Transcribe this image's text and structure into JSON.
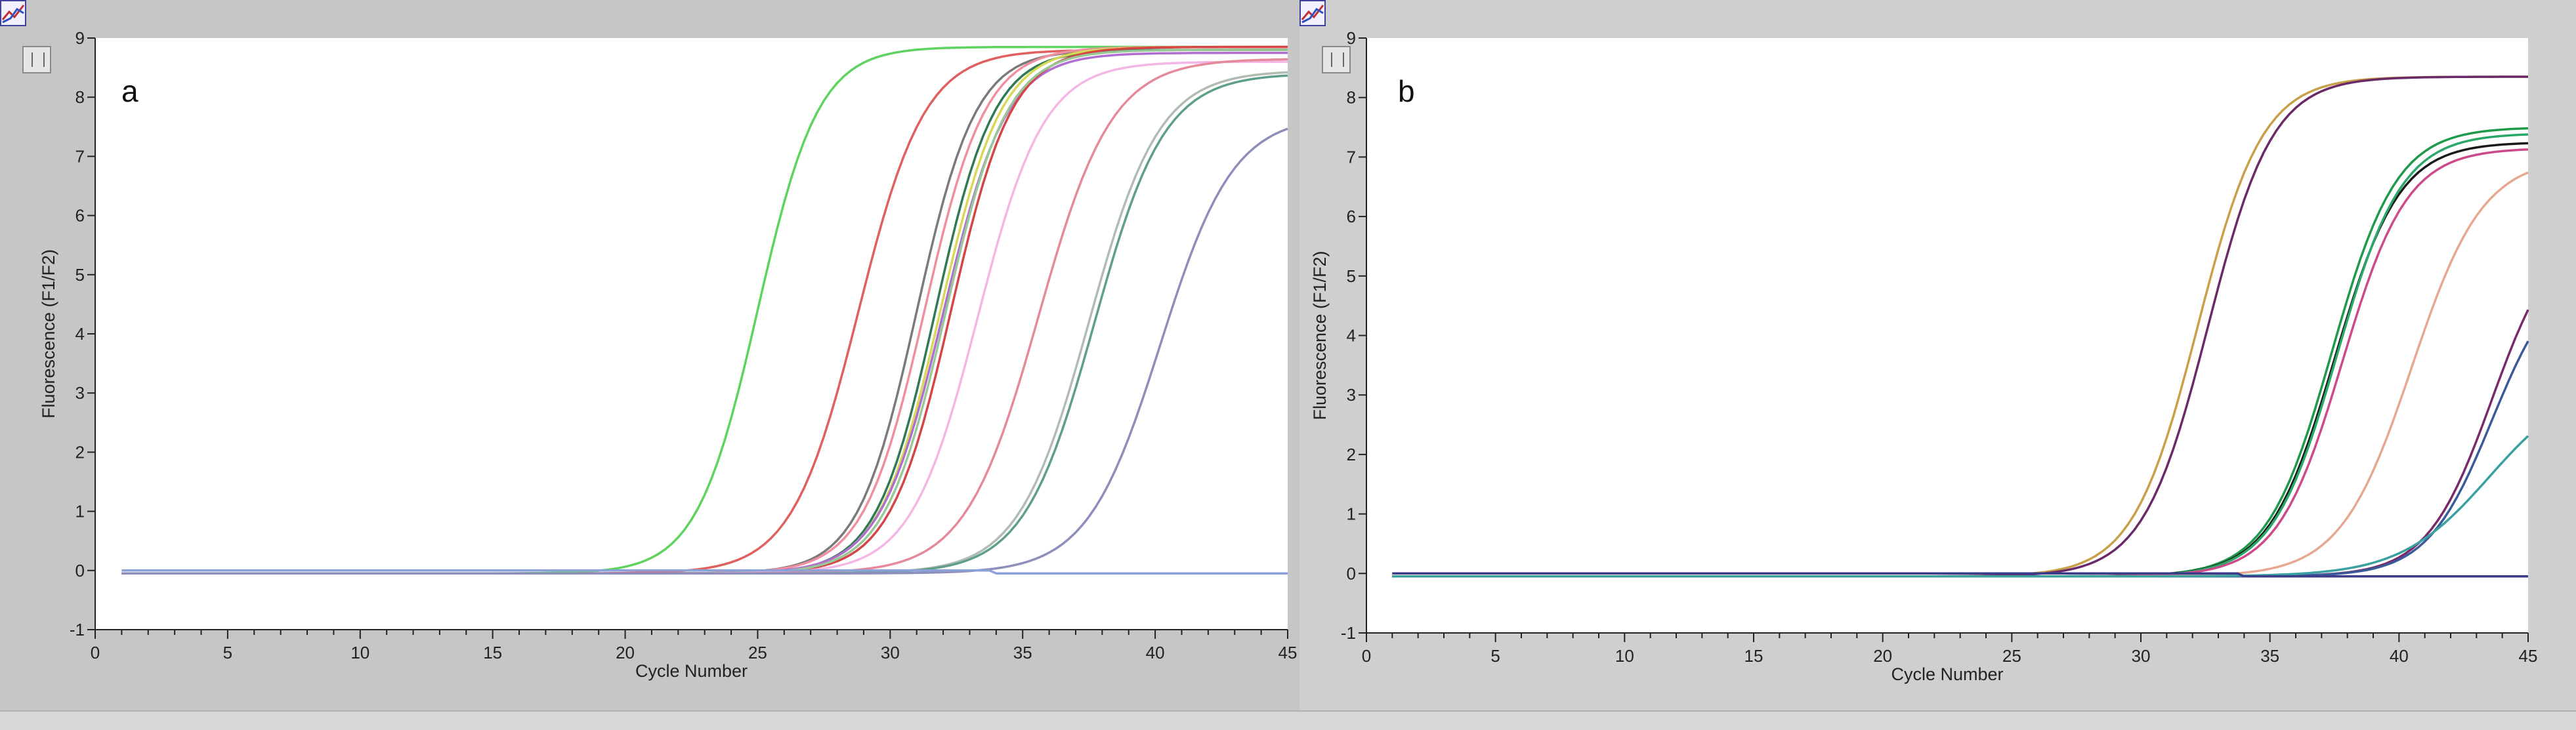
{
  "chart_data": [
    {
      "type": "line",
      "panel_label": "a",
      "xlabel": "Cycle Number",
      "ylabel": "Fluorescence (F1/F2)",
      "xlim": [
        0,
        45
      ],
      "ylim": [
        -1,
        9
      ],
      "x_ticks": [
        "0",
        "5",
        "10",
        "15",
        "20",
        "25",
        "30",
        "35",
        "40",
        "45"
      ],
      "y_ticks": [
        "-1",
        "0",
        "1",
        "2",
        "3",
        "4",
        "5",
        "6",
        "7",
        "8",
        "9"
      ],
      "grid": false,
      "series": [
        {
          "color": "#5fd35f",
          "ct": 25.0,
          "plateau": 8.85,
          "k": 0.6
        },
        {
          "color": "#e06060",
          "ct": 28.8,
          "plateau": 8.8,
          "k": 0.55
        },
        {
          "color": "#7a7a7a",
          "ct": 31.0,
          "plateau": 8.8,
          "k": 0.62
        },
        {
          "color": "#ef8fa0",
          "ct": 31.3,
          "plateau": 8.85,
          "k": 0.6
        },
        {
          "color": "#2d7a54",
          "ct": 31.7,
          "plateau": 8.8,
          "k": 0.62
        },
        {
          "color": "#d8d858",
          "ct": 31.9,
          "plateau": 8.85,
          "k": 0.6
        },
        {
          "color": "#b06fd0",
          "ct": 32.0,
          "plateau": 8.75,
          "k": 0.58
        },
        {
          "color": "#d64545",
          "ct": 32.3,
          "plateau": 8.85,
          "k": 0.6
        },
        {
          "color": "#98c898",
          "ct": 32.1,
          "plateau": 8.8,
          "k": 0.6
        },
        {
          "color": "#f4b6e4",
          "ct": 33.3,
          "plateau": 8.6,
          "k": 0.55
        },
        {
          "color": "#e58a9a",
          "ct": 35.6,
          "plateau": 8.65,
          "k": 0.5
        },
        {
          "color": "#b2bdb2",
          "ct": 37.5,
          "plateau": 8.45,
          "k": 0.52
        },
        {
          "color": "#5f9f8a",
          "ct": 37.7,
          "plateau": 8.4,
          "k": 0.52
        },
        {
          "color": "#8e8ebc",
          "ct": 40.2,
          "plateau": 7.7,
          "k": 0.5
        },
        {
          "color": "#8aa2d8",
          "ct": null,
          "plateau": -0.05,
          "k": 0
        }
      ]
    },
    {
      "type": "line",
      "panel_label": "b",
      "xlabel": "Cycle Number",
      "ylabel": "Fluorescence (F1/F2)",
      "xlim": [
        0,
        45
      ],
      "ylim": [
        -1,
        9
      ],
      "x_ticks": [
        "0",
        "5",
        "10",
        "15",
        "20",
        "25",
        "30",
        "35",
        "40",
        "45"
      ],
      "y_ticks": [
        "-1",
        "0",
        "1",
        "2",
        "3",
        "4",
        "5",
        "6",
        "7",
        "8",
        "9"
      ],
      "grid": false,
      "series": [
        {
          "color": "#c9a04a",
          "ct": 32.2,
          "plateau": 8.35,
          "k": 0.55
        },
        {
          "color": "#6a2a6a",
          "ct": 32.6,
          "plateau": 8.35,
          "k": 0.55
        },
        {
          "color": "#1e9a4a",
          "ct": 37.4,
          "plateau": 7.5,
          "k": 0.55
        },
        {
          "color": "#1a1a1a",
          "ct": 37.5,
          "plateau": 7.25,
          "k": 0.55
        },
        {
          "color": "#2aa86a",
          "ct": 37.6,
          "plateau": 7.4,
          "k": 0.55
        },
        {
          "color": "#cc4a8a",
          "ct": 37.8,
          "plateau": 7.15,
          "k": 0.55
        },
        {
          "color": "#e6a890",
          "ct": 40.5,
          "plateau": 7.0,
          "k": 0.5
        },
        {
          "color": "#7a2a6a",
          "ct": 43.6,
          "plateau": 5.9,
          "k": 0.55
        },
        {
          "color": "#3a5a9a",
          "ct": 43.6,
          "plateau": 5.2,
          "k": 0.55
        },
        {
          "color": "#3aa0a0",
          "ct": 43.5,
          "plateau": 3.3,
          "k": 0.4
        },
        {
          "color": "#3c3c8c",
          "ct": null,
          "plateau": -0.05,
          "k": 0
        }
      ]
    }
  ]
}
